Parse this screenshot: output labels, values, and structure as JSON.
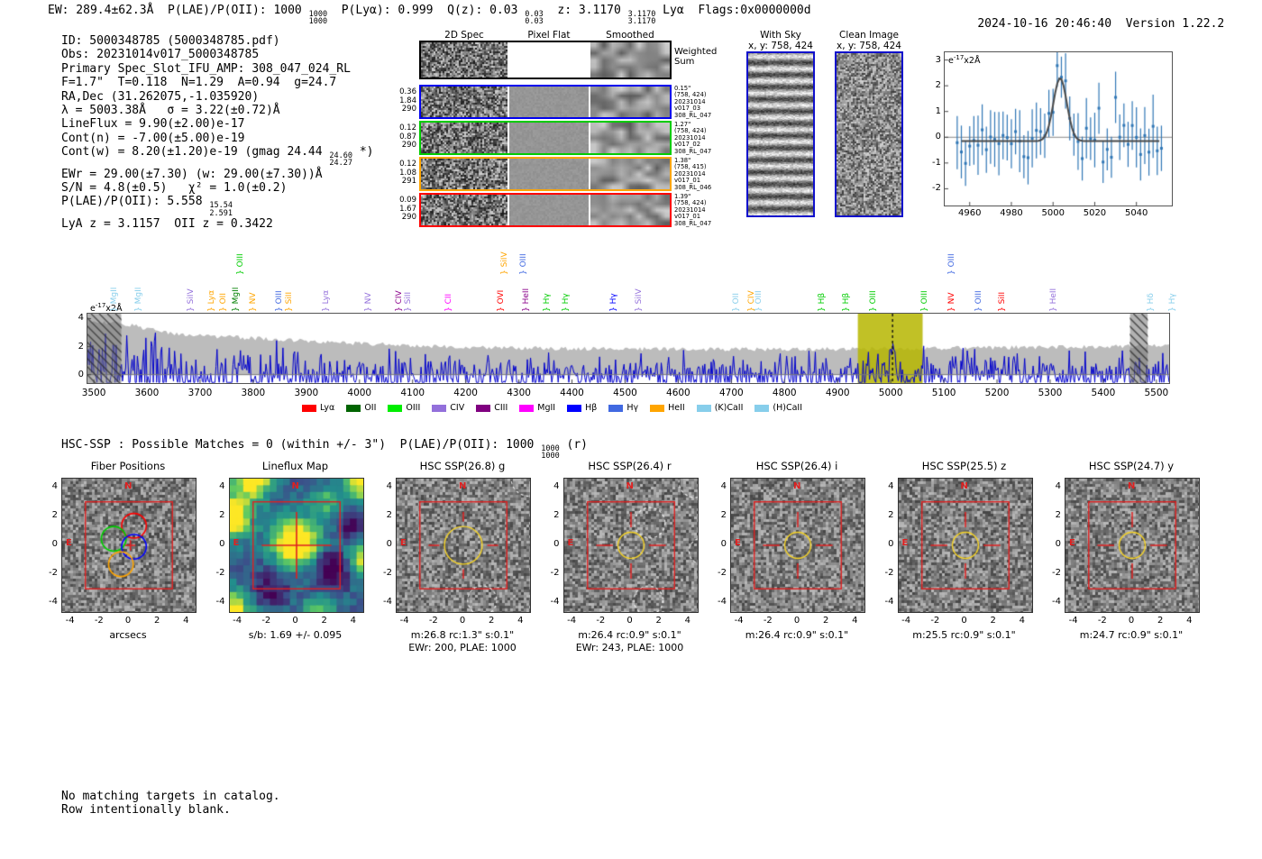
{
  "header": {
    "left_segments": [
      {
        "t": "EW: 289.4±62.3Å  P(LAE)/P(OII): 1000 "
      },
      {
        "frac": [
          "1000",
          "1000"
        ]
      },
      {
        "t": "  P(Lyα): 0.999  Q(z): 0.03 "
      },
      {
        "frac": [
          "0.03",
          "0.03"
        ]
      },
      {
        "t": "  z: 3.1170 "
      },
      {
        "frac": [
          "3.1170",
          "3.1170"
        ]
      },
      {
        "t": " Lyα  Flags:0x0000000d"
      }
    ],
    "datetime": "2024-10-16 20:46:40",
    "version": "Version 1.22.2"
  },
  "info_block": {
    "lines": [
      [
        {
          "t": "ID: 5000348785 (5000348785.pdf)"
        }
      ],
      [
        {
          "t": "Obs: 20231014v017_5000348785"
        }
      ],
      [
        {
          "t": "Primary Spec_Slot_IFU_AMP: 308_047_024_RL"
        }
      ],
      [
        {
          "t": "F=1.7\"  T=0.118  N=1.29  A=0.94  g=24.7"
        }
      ],
      [
        {
          "t": "RA,Dec (31.262075,-1.035920)"
        }
      ],
      [
        {
          "t": "λ = 5003.38Å   σ = 3.22(±0.72)Å"
        }
      ],
      [
        {
          "t": "LineFlux = 9.90(±2.00)e-17"
        }
      ],
      [
        {
          "t": "Cont(n) = -7.00(±5.00)e-19"
        }
      ],
      [
        {
          "t": "Cont(w) = 8.20(±1.20)e-19 (gmag 24.44 "
        },
        {
          "frac": [
            "24.60",
            "24.27"
          ]
        },
        {
          "t": " *)"
        }
      ],
      [
        {
          "t": "EWr = 29.00(±7.30) (w: 29.00(±7.30))Å"
        }
      ],
      [
        {
          "t": "S/N = 4.8(±0.5)   χ² = 1.0(±0.2)"
        }
      ],
      [
        {
          "t": "P(LAE)/P(OII): 5.558 "
        },
        {
          "frac": [
            "15.54",
            "2.591"
          ]
        }
      ],
      [
        {
          "t": "LyA z = 3.1157  OII z = 0.3422"
        }
      ]
    ]
  },
  "spec2d": {
    "col_headers": [
      "2D Spec",
      "Pixel Flat",
      "Smoothed"
    ],
    "weighted_label": [
      "Weighted",
      "Sum"
    ],
    "rows": [
      {
        "kind": "weighted",
        "border": "#000000",
        "left": [],
        "right": []
      },
      {
        "kind": "fiber",
        "border": "#0000ee",
        "left": [
          "0.36",
          "1.84",
          "290"
        ],
        "right": [
          "0.15\"",
          "(758, 424)",
          "20231014",
          "v017_03",
          "308_RL_047"
        ]
      },
      {
        "kind": "fiber",
        "border": "#00cc00",
        "left": [
          "0.12",
          "0.87",
          "290"
        ],
        "right": [
          "1.27\"",
          "(758, 424)",
          "20231014",
          "v017_02",
          "308_RL_047"
        ]
      },
      {
        "kind": "fiber",
        "border": "#ffa500",
        "left": [
          "0.12",
          "1.08",
          "291"
        ],
        "right": [
          "1.38\"",
          "(758, 415)",
          "20231014",
          "v017_01",
          "308_RL_046"
        ]
      },
      {
        "kind": "fiber",
        "border": "#ff0000",
        "left": [
          "0.09",
          "1.67",
          "290"
        ],
        "right": [
          "1.39\"",
          "(758, 424)",
          "20231014",
          "v017_01",
          "308_RL_047"
        ]
      }
    ]
  },
  "sky_panels": [
    {
      "title": "With Sky",
      "subtitle": "x, y: 758, 424",
      "pattern": "stripes",
      "border": "#1010cc"
    },
    {
      "title": "Clean Image",
      "subtitle": "x, y: 758, 424",
      "pattern": "noise",
      "border": "#1010cc"
    }
  ],
  "hsc_line_segments": [
    {
      "t": "HSC-SSP : Possible Matches = 0 (within +/- 3\")  P(LAE)/P(OII): 1000 "
    },
    {
      "frac": [
        "1000",
        "1000"
      ]
    },
    {
      "t": " (r)"
    }
  ],
  "footer_lines": [
    "No matching targets in catalog.",
    "Row intentionally blank."
  ],
  "chart_data": [
    {
      "id": "line_fit_inset",
      "type": "scatter",
      "corner_label": {
        "pre": "e",
        "sup": "-17",
        "post": "x2Å"
      },
      "xlim": [
        4948,
        5057
      ],
      "ylim": [
        -2.65,
        3.3
      ],
      "xticks": [
        4960,
        4980,
        5000,
        5020,
        5040
      ],
      "yticks": [
        3,
        2,
        1,
        0,
        -1,
        -2
      ],
      "gaussian_fit": {
        "center": 5003.38,
        "sigma": 3.22,
        "amplitude": 2.45,
        "baseline": -0.15
      },
      "point_color": "#2f76b5",
      "fit_color": "#4a4a4a",
      "noise_sigma": 0.72,
      "point_step": 2,
      "seed": 917
    },
    {
      "id": "main_spectrum",
      "type": "line",
      "corner_label": {
        "pre": "e",
        "sup": "-17",
        "post": "x2Å"
      },
      "xlim": [
        3488,
        5524
      ],
      "ylim": [
        -0.6,
        4.35
      ],
      "xticks": [
        3500,
        3600,
        3700,
        3800,
        3900,
        4000,
        4100,
        4200,
        4300,
        4400,
        4500,
        4600,
        4700,
        4800,
        4900,
        5000,
        5100,
        5200,
        5300,
        5400,
        5500
      ],
      "yticks": [
        0,
        2,
        4
      ],
      "line_color": "#0000cd",
      "envelope_color": "#bcbcbc",
      "envelope_points": [
        [
          3488,
          3.9
        ],
        [
          3560,
          3.6
        ],
        [
          3650,
          2.9
        ],
        [
          3800,
          2.6
        ],
        [
          3950,
          2.3
        ],
        [
          4150,
          2.0
        ],
        [
          4400,
          1.85
        ],
        [
          4700,
          1.8
        ],
        [
          5000,
          1.85
        ],
        [
          5250,
          1.95
        ],
        [
          5524,
          2.05
        ]
      ],
      "peak": {
        "center": 5003.38,
        "amplitude": 2.3,
        "sigma": 4.0
      },
      "highlight_band": {
        "x0": 4938,
        "x1": 5060,
        "color": "rgba(182,182,0,0.85)"
      },
      "dashed_line_x": 5003.38,
      "hatched_bands": [
        [
          3488,
          3552
        ],
        [
          5450,
          5484
        ]
      ],
      "seed": 551,
      "brace": "}",
      "emission_lines": [
        {
          "name": "MgII",
          "wave": 3524,
          "color": "#87ceeb",
          "raised": false
        },
        {
          "name": "MgII",
          "wave": 3570,
          "color": "#87ceeb",
          "raised": false
        },
        {
          "name": "SiIV",
          "wave": 3668,
          "color": "#9370db",
          "raised": false
        },
        {
          "name": "Lyα",
          "wave": 3707,
          "color": "#ffa500",
          "raised": false
        },
        {
          "name": "OII",
          "wave": 3729,
          "color": "#ffa500",
          "raised": false
        },
        {
          "name": "MgII",
          "wave": 3753,
          "color": "#008000",
          "raised": false
        },
        {
          "name": "OIII",
          "wave": 3761,
          "color": "#00cc00",
          "raised": true
        },
        {
          "name": "NV",
          "wave": 3785,
          "color": "#ffa500",
          "raised": false
        },
        {
          "name": "OIII",
          "wave": 3834,
          "color": "#4169e1",
          "raised": false
        },
        {
          "name": "SiII",
          "wave": 3853,
          "color": "#ffa500",
          "raised": false
        },
        {
          "name": "Lyα",
          "wave": 3922,
          "color": "#9370db",
          "raised": false
        },
        {
          "name": "NV",
          "wave": 4002,
          "color": "#9370db",
          "raised": false
        },
        {
          "name": "CIV",
          "wave": 4060,
          "color": "#8b008b",
          "raised": false
        },
        {
          "name": "SiII",
          "wave": 4077,
          "color": "#9370db",
          "raised": false
        },
        {
          "name": "CII",
          "wave": 4153,
          "color": "#ff00ff",
          "raised": false
        },
        {
          "name": "OVI",
          "wave": 4251,
          "color": "#ff0000",
          "raised": false
        },
        {
          "name": "SiIV",
          "wave": 4258,
          "color": "#ffa500",
          "raised": true
        },
        {
          "name": "OIII",
          "wave": 4294,
          "color": "#4169e1",
          "raised": true
        },
        {
          "name": "HeII",
          "wave": 4299,
          "color": "#8b008b",
          "raised": false
        },
        {
          "name": "Hγ",
          "wave": 4338,
          "color": "#00cc00",
          "raised": false
        },
        {
          "name": "Hγ",
          "wave": 4374,
          "color": "#00cc00",
          "raised": false
        },
        {
          "name": "Hγ",
          "wave": 4464,
          "color": "#0000ff",
          "raised": false
        },
        {
          "name": "SiIV",
          "wave": 4511,
          "color": "#9370db",
          "raised": false
        },
        {
          "name": "OII",
          "wave": 4694,
          "color": "#87ceeb",
          "raised": false
        },
        {
          "name": "CIV",
          "wave": 4723,
          "color": "#ffa500",
          "raised": false
        },
        {
          "name": "OIII",
          "wave": 4737,
          "color": "#87ceeb",
          "raised": false
        },
        {
          "name": "Hβ",
          "wave": 4855,
          "color": "#00cc00",
          "raised": false
        },
        {
          "name": "Hβ",
          "wave": 4901,
          "color": "#00cc00",
          "raised": false
        },
        {
          "name": "OIII",
          "wave": 4952,
          "color": "#00cc00",
          "raised": false
        },
        {
          "name": "OIII",
          "wave": 5049,
          "color": "#00cc00",
          "raised": false
        },
        {
          "name": "OIII",
          "wave": 5100,
          "color": "#4169e1",
          "raised": true
        },
        {
          "name": "NV",
          "wave": 5100,
          "color": "#ff0000",
          "raised": false
        },
        {
          "name": "OIII",
          "wave": 5151,
          "color": "#4169e1",
          "raised": false
        },
        {
          "name": "SiII",
          "wave": 5195,
          "color": "#ff0000",
          "raised": false
        },
        {
          "name": "HeII",
          "wave": 5291,
          "color": "#9370db",
          "raised": false
        },
        {
          "name": "Hδ",
          "wave": 5474,
          "color": "#87ceeb",
          "raised": false
        },
        {
          "name": "Hγ",
          "wave": 5515,
          "color": "#87ceeb",
          "raised": false
        }
      ],
      "legend": [
        {
          "label": "Lyα",
          "color": "#ff0000"
        },
        {
          "label": "OII",
          "color": "#006400"
        },
        {
          "label": "OIII",
          "color": "#00ee00"
        },
        {
          "label": "CIV",
          "color": "#9370db"
        },
        {
          "label": "CIII",
          "color": "#800080"
        },
        {
          "label": "MgII",
          "color": "#ff00ff"
        },
        {
          "label": "Hβ",
          "color": "#0000ff"
        },
        {
          "label": "Hγ",
          "color": "#4169e1"
        },
        {
          "label": "HeII",
          "color": "#ffa500"
        },
        {
          "label": "(K)CaII",
          "color": "#87ceeb"
        },
        {
          "label": "(H)CaII",
          "color": "#87ceeb"
        }
      ]
    },
    {
      "id": "cutout_row",
      "type": "heatmap",
      "axis_ticks": [
        -4,
        -2,
        0,
        2,
        4
      ],
      "axis_range": [
        -4.6,
        4.6
      ],
      "box_half_size": 3,
      "compass": {
        "north": "N",
        "east": "E"
      },
      "panels": [
        {
          "style": "fiber",
          "title": "Fiber Positions",
          "xlabel": "arcsecs",
          "captions": [],
          "fibers": [
            {
              "x": 0.35,
              "y": 1.35,
              "r": 0.85,
              "color": "#ff0000"
            },
            {
              "x": -1.05,
              "y": 0.45,
              "r": 0.85,
              "color": "#00cc00"
            },
            {
              "x": 0.35,
              "y": -0.1,
              "r": 0.85,
              "color": "#0000ff"
            },
            {
              "x": -0.55,
              "y": -1.3,
              "r": 0.85,
              "color": "#ffa500"
            }
          ],
          "seed": 11
        },
        {
          "style": "lineflux",
          "title": "Lineflux Map",
          "captions": [
            "s/b: 1.69 +/- 0.095"
          ],
          "bumps": [
            [
              0,
              0.2,
              1.05,
              1.1
            ],
            [
              -4.6,
              2.0,
              1.0,
              1.0
            ],
            [
              -3.0,
              4.5,
              0.85,
              0.9
            ],
            [
              -4.6,
              -4.6,
              0.8,
              1.0
            ],
            [
              4.6,
              4.3,
              0.75,
              0.9
            ],
            [
              4.7,
              -1.0,
              0.7,
              1.0
            ],
            [
              2.0,
              3.0,
              0.35,
              0.8
            ],
            [
              1.5,
              -4.6,
              0.45,
              0.8
            ],
            [
              2.6,
              -1.6,
              -0.5,
              1.0
            ],
            [
              -1.8,
              -3.0,
              -0.3,
              0.9
            ],
            [
              3.8,
              1.5,
              -0.3,
              0.8
            ]
          ],
          "seed": 22
        },
        {
          "style": "cutout",
          "title": "HSC SSP(26.8) g",
          "captions": [
            "m:26.8 rc:1.3\"  s:0.1\"",
            "EWr: 200, PLAE: 1000"
          ],
          "aperture_r": 1.3,
          "dashed_circles": [
            [
              1.3,
              -3.8,
              1.0
            ],
            [
              4.5,
              4.6,
              1.2
            ]
          ],
          "seed": 33
        },
        {
          "style": "cutout",
          "title": "HSC SSP(26.4) r",
          "captions": [
            "m:26.4 rc:0.9\"  s:0.1\"",
            "EWr: 243, PLAE: 1000"
          ],
          "aperture_r": 0.9,
          "dashed_circles": [
            [
              1.3,
              1.55,
              1.05
            ],
            [
              1.2,
              -3.8,
              1.0
            ],
            [
              4.4,
              4.4,
              1.1
            ],
            [
              4.9,
              -0.4,
              0.9
            ]
          ],
          "seed": 44
        },
        {
          "style": "cutout",
          "title": "HSC SSP(26.4) i",
          "captions": [
            "m:26.4 rc:0.9\"  s:0.1\""
          ],
          "aperture_r": 0.9,
          "dashed_circles": [],
          "seed": 55
        },
        {
          "style": "cutout",
          "title": "HSC SSP(25.5) z",
          "captions": [
            "m:25.5 rc:0.9\"  s:0.1\""
          ],
          "aperture_r": 0.9,
          "dashed_circles": [],
          "seed": 66
        },
        {
          "style": "cutout",
          "title": "HSC SSP(24.7) y",
          "captions": [
            "m:24.7 rc:0.9\"  s:0.1\""
          ],
          "aperture_r": 0.9,
          "dashed_circles": [],
          "seed": 77
        }
      ]
    }
  ]
}
